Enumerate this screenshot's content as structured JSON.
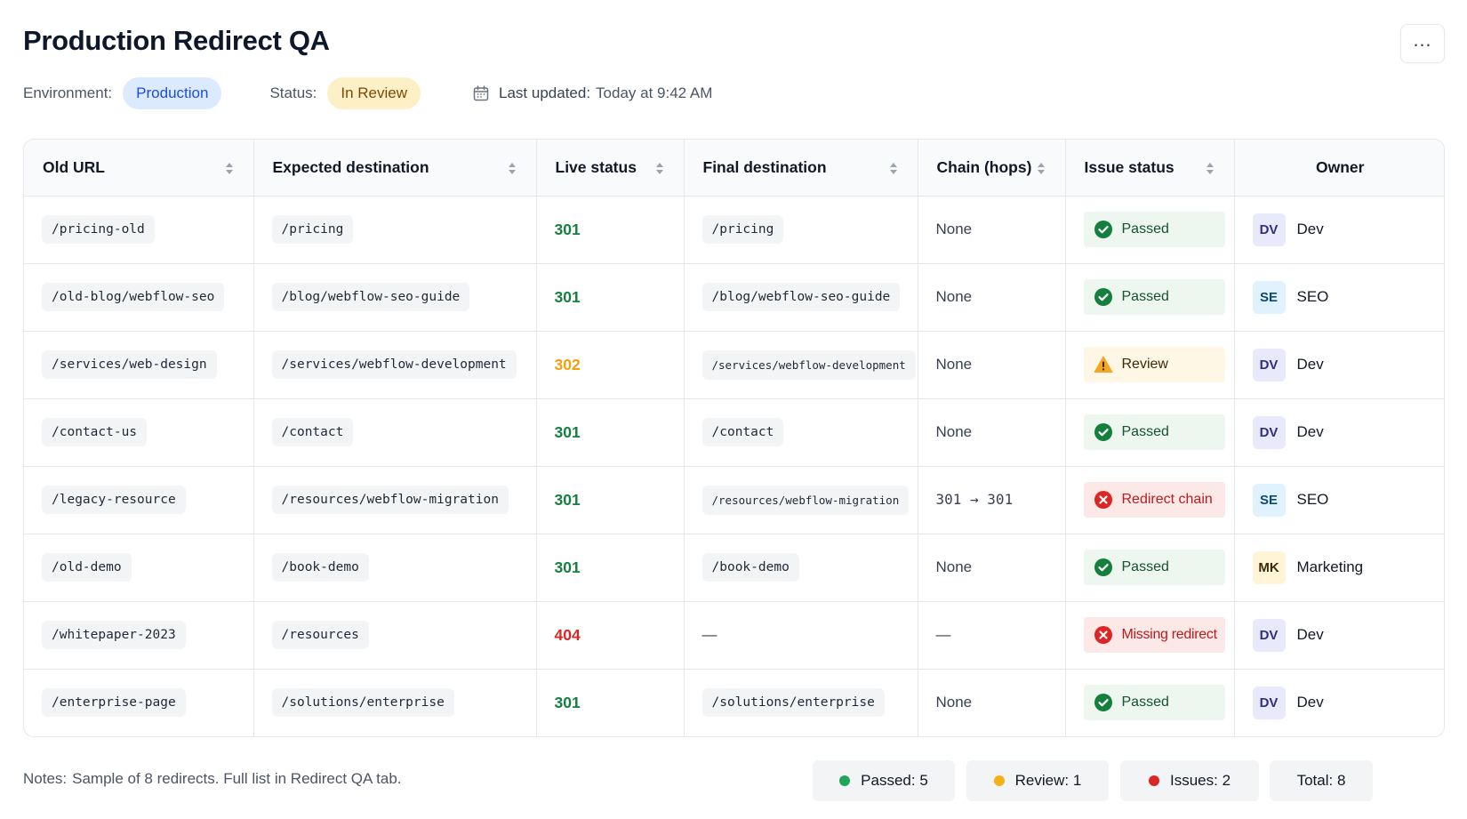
{
  "title": "Production Redirect QA",
  "menu_icon": "more-horizontal-icon",
  "meta": {
    "environment_label": "Environment:",
    "environment_value": "Production",
    "status_label": "Status:",
    "status_value": "In Review",
    "updated_label": "Last updated:",
    "updated_value": "Today at 9:42 AM"
  },
  "columns": [
    "Old URL",
    "Expected destination",
    "Live status",
    "Final destination",
    "Chain (hops)",
    "Issue status",
    "Owner"
  ],
  "rows": [
    {
      "old_url": "/pricing-old",
      "expected": "/pricing",
      "live_status": "301",
      "final": "/pricing",
      "chain": "None",
      "issue": "Passed",
      "owner_initials": "DV",
      "owner": "Dev"
    },
    {
      "old_url": "/old-blog/webflow-seo",
      "expected": "/blog/webflow-seo-guide",
      "live_status": "301",
      "final": "/blog/webflow-seo-guide",
      "chain": "None",
      "issue": "Passed",
      "owner_initials": "SE",
      "owner": "SEO"
    },
    {
      "old_url": "/services/web-design",
      "expected": "/services/webflow-development",
      "live_status": "302",
      "final": "/services/webflow-development",
      "chain": "None",
      "issue": "Review",
      "owner_initials": "DV",
      "owner": "Dev"
    },
    {
      "old_url": "/contact-us",
      "expected": "/contact",
      "live_status": "301",
      "final": "/contact",
      "chain": "None",
      "issue": "Passed",
      "owner_initials": "DV",
      "owner": "Dev"
    },
    {
      "old_url": "/legacy-resource",
      "expected": "/resources/webflow-migration",
      "live_status": "301",
      "final": "/resources/webflow-migration",
      "chain": "301 → 301",
      "issue": "Redirect chain",
      "owner_initials": "SE",
      "owner": "SEO"
    },
    {
      "old_url": "/old-demo",
      "expected": "/book-demo",
      "live_status": "301",
      "final": "/book-demo",
      "chain": "None",
      "issue": "Passed",
      "owner_initials": "MK",
      "owner": "Marketing"
    },
    {
      "old_url": "/whitepaper-2023",
      "expected": "/resources",
      "live_status": "404",
      "final": "—",
      "chain": "—",
      "issue": "Missing redirect",
      "owner_initials": "DV",
      "owner": "Dev"
    },
    {
      "old_url": "/enterprise-page",
      "expected": "/solutions/enterprise",
      "live_status": "301",
      "final": "/solutions/enterprise",
      "chain": "None",
      "issue": "Passed",
      "owner_initials": "DV",
      "owner": "Dev"
    }
  ],
  "notes": {
    "label": "Notes:",
    "text": "Sample of 8 redirects. Full list in Redirect QA tab."
  },
  "summary": {
    "passed_label": "Passed:",
    "passed_count": "5",
    "review_label": "Review:",
    "review_count": "1",
    "issues_label": "Issues:",
    "issues_count": "2",
    "total_label": "Total:",
    "total_count": "8"
  },
  "colors": {
    "status_ok": "#15803d",
    "status_warn": "#f59e0b",
    "status_error": "#dc2626",
    "passed_dot": "#22a55a",
    "review_dot": "#f5b014",
    "issues_dot": "#dc2626"
  }
}
